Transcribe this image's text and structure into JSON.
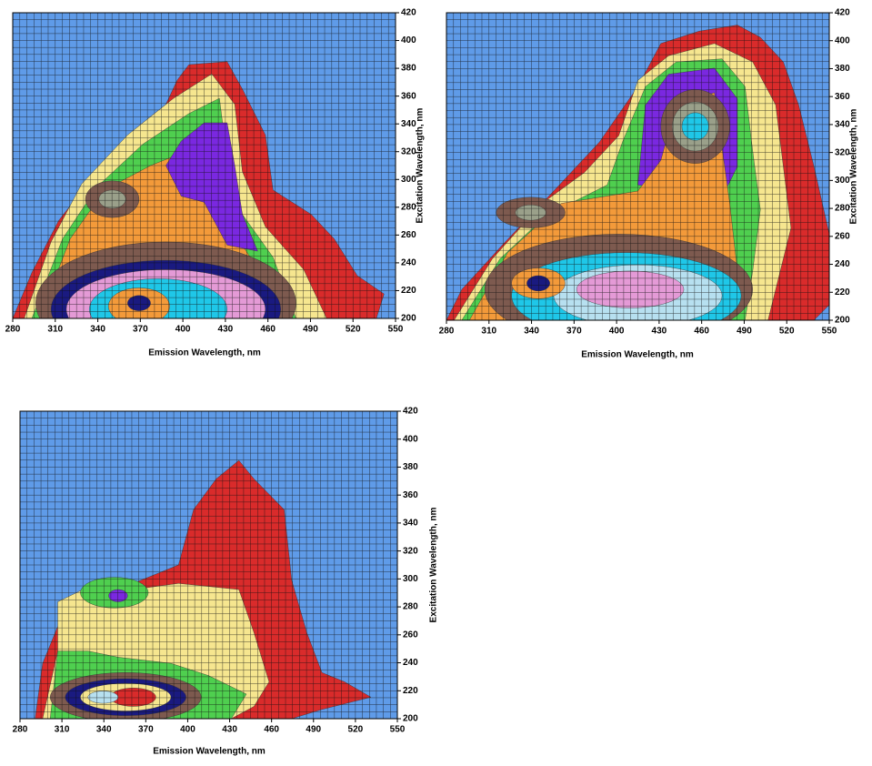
{
  "chart_data": [
    {
      "type": "contour",
      "x_label": "Emission Wavelength, nm",
      "y_label": "Excitation Wavelength, nm",
      "xlim": [
        280,
        550
      ],
      "ylim": [
        200,
        420
      ],
      "xticks": [
        280,
        310,
        340,
        370,
        400,
        430,
        460,
        490,
        520,
        550
      ],
      "yticks": [
        200,
        220,
        240,
        260,
        280,
        300,
        320,
        340,
        360,
        380,
        400,
        420
      ],
      "grid": true
    },
    {
      "type": "contour",
      "x_label": "Emission Wavelength, nm",
      "y_label": "Excitation Wavelength, nm",
      "xlim": [
        280,
        550
      ],
      "ylim": [
        200,
        420
      ],
      "xticks": [
        280,
        310,
        340,
        370,
        400,
        430,
        460,
        490,
        520,
        550
      ],
      "yticks": [
        200,
        220,
        240,
        260,
        280,
        300,
        320,
        340,
        360,
        380,
        400,
        420
      ],
      "grid": true
    },
    {
      "type": "contour",
      "x_label": "Emission Wavelength, nm",
      "y_label": "Excitation Wavelength, nm",
      "xlim": [
        280,
        550
      ],
      "ylim": [
        200,
        420
      ],
      "xticks": [
        280,
        310,
        340,
        370,
        400,
        430,
        460,
        490,
        520,
        550
      ],
      "yticks": [
        200,
        220,
        240,
        260,
        280,
        300,
        320,
        340,
        360,
        380,
        400,
        420
      ],
      "grid": true
    }
  ]
}
